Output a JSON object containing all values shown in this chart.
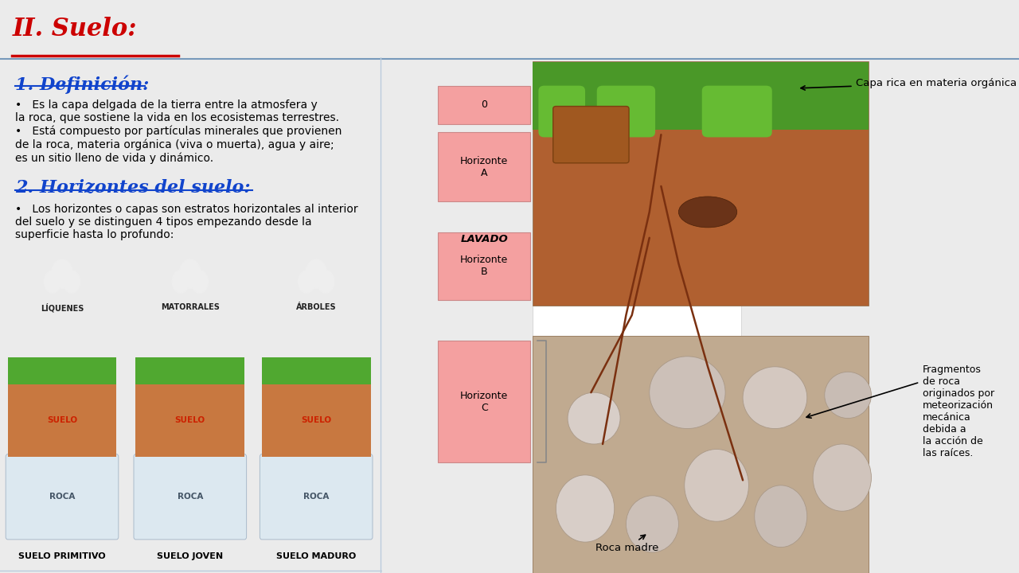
{
  "bg_color": "#ebebeb",
  "title": "II. Suelo:",
  "title_color": "#cc0000",
  "title_underline_color": "#cc0000",
  "title_fontsize": 22,
  "divider_color": "#7799bb",
  "left_panel_bg": "#f0f0f0",
  "green_bar_color": "#22aa44",
  "section1_title": "1. Definición:",
  "section1_color": "#1144cc",
  "section1_fontsize": 16,
  "section1_text1": "•   Es la capa delgada de la tierra entre la atmosfera y\nla roca, que sostiene la vida en los ecosistemas terrestres.",
  "section1_text2": "•   Está compuesto por partículas minerales que provienen\nde la roca, materia orgánica (viva o muerta), agua y aire;\nes un sitio lleno de vida y dinámico.",
  "section2_title": "2. Horizontes del suelo:",
  "section2_color": "#1144cc",
  "section2_fontsize": 16,
  "section2_text": "•   Los horizontes o capas son estratos horizontales al interior\ndel suelo y se distinguen 4 tipos empezando desde la\nsuperficie hasta lo profundo:",
  "horizon_box_color": "#f4a0a0",
  "lavado_text": "LAVADO",
  "annotation1_text": "Capa rica en materia orgánica",
  "annotation2_text": "Fragmentos\nde roca\noriginados por\nmeteorización\nmecánica\ndebida a\nla acción de\nlas raíces.",
  "rocamadre_text": "Roca madre",
  "suelo_types": [
    "SUELO PRIMITIVO",
    "SUELO JOVEN",
    "SUELO MADURO"
  ],
  "cloud_labels": [
    "LÍQUENES",
    "MATORRALES",
    "ÁRBOLES"
  ]
}
